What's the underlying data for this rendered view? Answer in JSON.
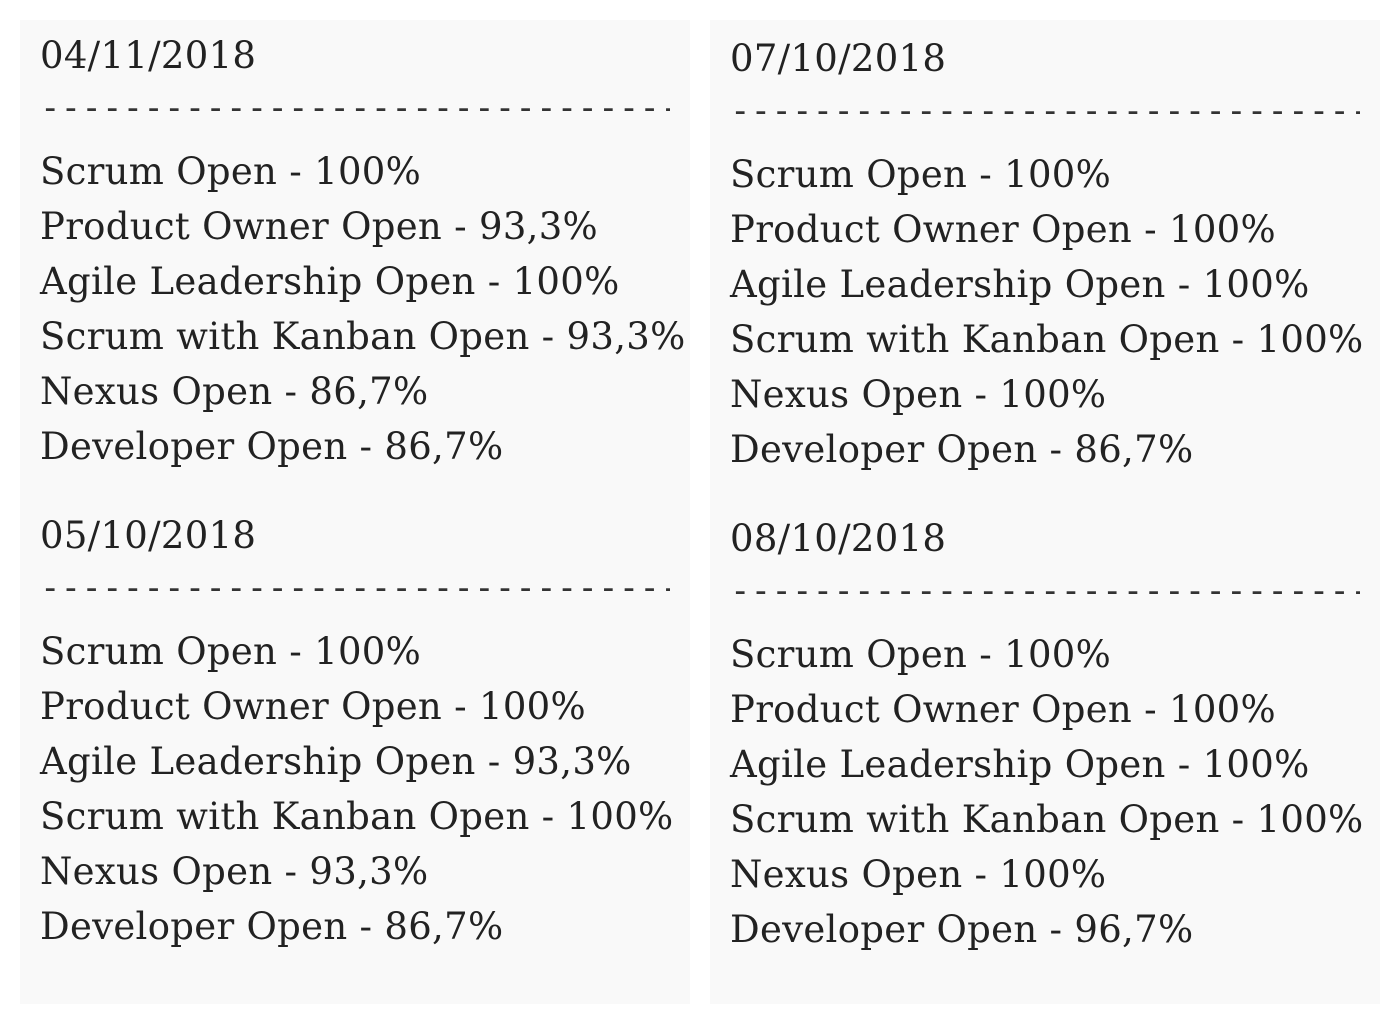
{
  "left_column": {
    "blocks": [
      {
        "date": "04/11/2018",
        "divider": "----------------------------------------",
        "results": [
          "Scrum Open - 100%",
          "Product Owner Open - 93,3%",
          "Agile Leadership Open - 100%",
          "Scrum with Kanban Open - 93,3%",
          "Nexus Open - 86,7%",
          "Developer Open - 86,7%"
        ]
      },
      {
        "date": "05/10/2018",
        "divider": "----------------------------------------",
        "results": [
          "Scrum Open - 100%",
          "Product Owner Open - 100%",
          "Agile Leadership Open - 93,3%",
          "Scrum with Kanban Open - 100%",
          "Nexus Open - 93,3%",
          "Developer Open - 86,7%"
        ]
      }
    ]
  },
  "right_column": {
    "blocks": [
      {
        "date": "07/10/2018",
        "divider": "----------------------------------------",
        "results": [
          "Scrum Open - 100%",
          "Product Owner Open - 100%",
          "Agile Leadership Open - 100%",
          "Scrum with Kanban Open - 100%",
          "Nexus Open - 100%",
          "Developer Open - 86,7%"
        ]
      },
      {
        "date": "08/10/2018",
        "divider": "----------------------------------------",
        "results": [
          "Scrum Open - 100%",
          "Product Owner Open - 100%",
          "Agile Leadership Open - 100%",
          "Scrum with Kanban Open - 100%",
          "Nexus Open - 100%",
          "Developer Open - 96,7%"
        ]
      }
    ]
  }
}
